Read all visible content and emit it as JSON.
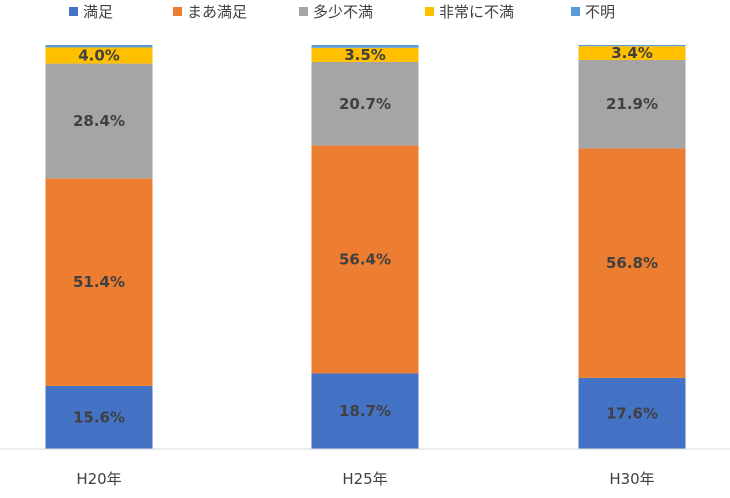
{
  "chart_data": {
    "type": "bar",
    "stacked": true,
    "normalized": true,
    "categories": [
      "H20年",
      "H25年",
      "H30年"
    ],
    "series": [
      {
        "name": "満足",
        "color": "#4472C4",
        "values": [
          15.6,
          18.7,
          17.6
        ],
        "labels": [
          "15.6%",
          "18.7%",
          "17.6%"
        ]
      },
      {
        "name": "まあ満足",
        "color": "#ED7D31",
        "values": [
          51.4,
          56.4,
          56.8
        ],
        "labels": [
          "51.4%",
          "56.4%",
          "56.8%"
        ]
      },
      {
        "name": "多少不満",
        "color": "#A5A5A5",
        "values": [
          28.4,
          20.7,
          21.9
        ],
        "labels": [
          "28.4%",
          "20.7%",
          "21.9%"
        ]
      },
      {
        "name": "非常に不満",
        "color": "#FFC000",
        "values": [
          4.0,
          3.5,
          3.4
        ],
        "labels": [
          "4.0%",
          "3.5%",
          "3.4%"
        ]
      },
      {
        "name": "不明",
        "color": "#5B9BD5",
        "values": [
          0.6,
          0.7,
          0.3
        ],
        "labels": [
          "",
          "",
          ""
        ]
      }
    ],
    "ylim": [
      0,
      100
    ],
    "legend_position": "top",
    "grid": false
  }
}
